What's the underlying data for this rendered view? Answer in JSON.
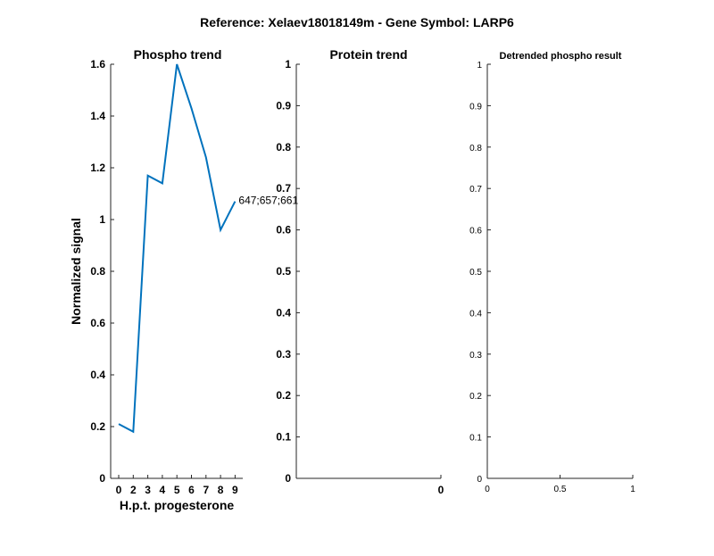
{
  "figure": {
    "suptitle": "Reference:  Xelaev18018149m - Gene Symbol:  LARP6"
  },
  "chart_data": [
    {
      "type": "line",
      "title": "Phospho trend",
      "xlabel": "H.p.t. progesterone",
      "ylabel": "Normalized signal",
      "x": [
        0,
        2,
        3,
        4,
        5,
        6,
        7,
        8,
        9
      ],
      "series": [
        {
          "values": [
            0.21,
            0.18,
            1.17,
            1.14,
            1.6,
            1.43,
            1.24,
            0.96,
            1.07
          ],
          "color": "#0072BD"
        }
      ],
      "annotations": [
        {
          "text": "647;657;661",
          "x": 9,
          "y": 1.07
        }
      ],
      "xticks": [
        "0",
        "2",
        "3",
        "4",
        "5",
        "6",
        "7",
        "8",
        "9"
      ],
      "yticks": [
        "0",
        "0.2",
        "0.4",
        "0.6",
        "0.8",
        "1",
        "1.2",
        "1.4",
        "1.6"
      ],
      "ylim": [
        0,
        1.6
      ],
      "grid": false
    },
    {
      "type": "line",
      "title": "Protein trend",
      "xlabel": "",
      "ylabel": "",
      "series": [],
      "xticks": [
        "0"
      ],
      "yticks": [
        "0",
        "0.1",
        "0.2",
        "0.3",
        "0.4",
        "0.5",
        "0.6",
        "0.7",
        "0.8",
        "0.9",
        "1"
      ],
      "ylim": [
        0,
        1
      ],
      "grid": false
    },
    {
      "type": "line",
      "title": "Detrended phospho result",
      "xlabel": "",
      "ylabel": "",
      "series": [],
      "xticks": [
        "0",
        "0.5",
        "1"
      ],
      "yticks": [
        "0",
        "0.1",
        "0.2",
        "0.3",
        "0.4",
        "0.5",
        "0.6",
        "0.7",
        "0.8",
        "0.9",
        "1"
      ],
      "xlim": [
        0,
        1
      ],
      "ylim": [
        0,
        1
      ],
      "grid": false
    }
  ]
}
